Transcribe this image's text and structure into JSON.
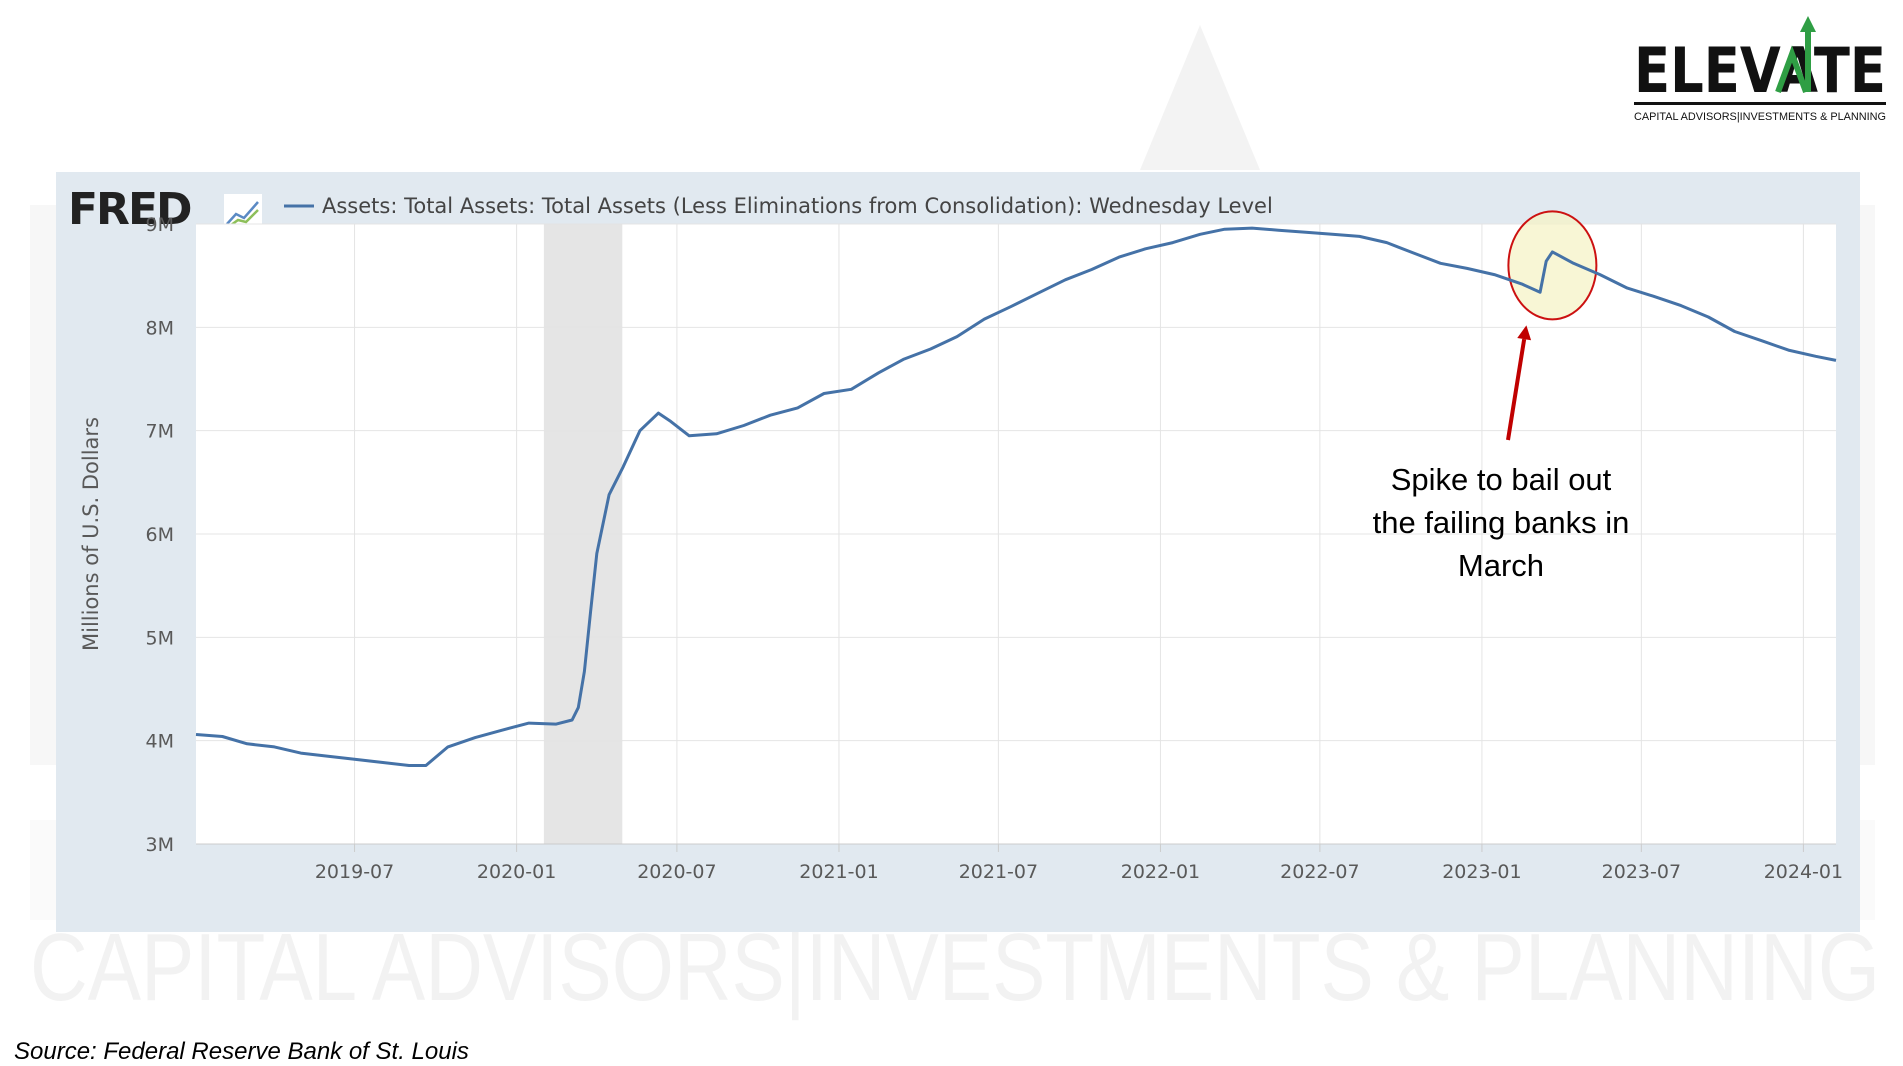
{
  "brand": {
    "name": "ELEVATE",
    "tagline": "CAPITAL ADVISORS|INVESTMENTS & PLANNING",
    "watermark_text": "CAPITAL ADVISORS|INVESTMENTS & PLANNING",
    "colors": {
      "text": "#111111",
      "accent": "#2f9e44"
    }
  },
  "fred": {
    "logo_text": "FRED",
    "logo_icon": "fred-chart-icon"
  },
  "source": "Source: Federal Reserve Bank of St. Louis",
  "chart_data": {
    "type": "line",
    "title": "",
    "xlabel": "",
    "ylabel": "Millions of U.S. Dollars",
    "ylim": [
      3000000,
      9000000
    ],
    "xlim": [
      "2019-01-02",
      "2024-02-07"
    ],
    "grid": true,
    "legend_position": "top-left",
    "yticks": [
      {
        "value": 3000000,
        "label": "3M"
      },
      {
        "value": 4000000,
        "label": "4M"
      },
      {
        "value": 5000000,
        "label": "5M"
      },
      {
        "value": 6000000,
        "label": "6M"
      },
      {
        "value": 7000000,
        "label": "7M"
      },
      {
        "value": 8000000,
        "label": "8M"
      },
      {
        "value": 9000000,
        "label": "9M"
      }
    ],
    "xticks": [
      {
        "value": "2019-07-01",
        "label": "2019-07"
      },
      {
        "value": "2020-01-01",
        "label": "2020-01"
      },
      {
        "value": "2020-07-01",
        "label": "2020-07"
      },
      {
        "value": "2021-01-01",
        "label": "2021-01"
      },
      {
        "value": "2021-07-01",
        "label": "2021-07"
      },
      {
        "value": "2022-01-01",
        "label": "2022-01"
      },
      {
        "value": "2022-07-01",
        "label": "2022-07"
      },
      {
        "value": "2023-01-01",
        "label": "2023-01"
      },
      {
        "value": "2023-07-01",
        "label": "2023-07"
      },
      {
        "value": "2024-01-01",
        "label": "2024-01"
      }
    ],
    "recession": {
      "start": "2020-02-01",
      "end": "2020-04-30",
      "color": "#e5e5e5"
    },
    "series": [
      {
        "name": "Assets: Total Assets: Total Assets (Less Eliminations from Consolidation): Wednesday Level",
        "color": "#4572a7",
        "points": [
          [
            "2019-01-02",
            4060000
          ],
          [
            "2019-02-01",
            4040000
          ],
          [
            "2019-03-01",
            3970000
          ],
          [
            "2019-04-01",
            3940000
          ],
          [
            "2019-05-01",
            3880000
          ],
          [
            "2019-06-01",
            3850000
          ],
          [
            "2019-07-01",
            3820000
          ],
          [
            "2019-08-01",
            3790000
          ],
          [
            "2019-09-01",
            3760000
          ],
          [
            "2019-09-20",
            3760000
          ],
          [
            "2019-10-15",
            3940000
          ],
          [
            "2019-11-15",
            4030000
          ],
          [
            "2019-12-15",
            4100000
          ],
          [
            "2020-01-15",
            4170000
          ],
          [
            "2020-02-15",
            4160000
          ],
          [
            "2020-03-04",
            4200000
          ],
          [
            "2020-03-11",
            4320000
          ],
          [
            "2020-03-18",
            4670000
          ],
          [
            "2020-03-25",
            5250000
          ],
          [
            "2020-04-01",
            5810000
          ],
          [
            "2020-04-15",
            6380000
          ],
          [
            "2020-05-01",
            6650000
          ],
          [
            "2020-05-20",
            7000000
          ],
          [
            "2020-06-10",
            7170000
          ],
          [
            "2020-06-24",
            7090000
          ],
          [
            "2020-07-15",
            6950000
          ],
          [
            "2020-08-15",
            6970000
          ],
          [
            "2020-09-15",
            7050000
          ],
          [
            "2020-10-15",
            7150000
          ],
          [
            "2020-11-15",
            7220000
          ],
          [
            "2020-12-15",
            7360000
          ],
          [
            "2021-01-15",
            7400000
          ],
          [
            "2021-02-15",
            7560000
          ],
          [
            "2021-03-15",
            7690000
          ],
          [
            "2021-04-15",
            7790000
          ],
          [
            "2021-05-15",
            7910000
          ],
          [
            "2021-06-15",
            8080000
          ],
          [
            "2021-07-15",
            8200000
          ],
          [
            "2021-08-15",
            8330000
          ],
          [
            "2021-09-15",
            8460000
          ],
          [
            "2021-10-15",
            8560000
          ],
          [
            "2021-11-15",
            8680000
          ],
          [
            "2021-12-15",
            8760000
          ],
          [
            "2022-01-15",
            8820000
          ],
          [
            "2022-02-15",
            8900000
          ],
          [
            "2022-03-15",
            8950000
          ],
          [
            "2022-04-15",
            8960000
          ],
          [
            "2022-05-15",
            8940000
          ],
          [
            "2022-06-15",
            8920000
          ],
          [
            "2022-07-15",
            8900000
          ],
          [
            "2022-08-15",
            8880000
          ],
          [
            "2022-09-15",
            8820000
          ],
          [
            "2022-10-15",
            8720000
          ],
          [
            "2022-11-15",
            8620000
          ],
          [
            "2022-12-15",
            8570000
          ],
          [
            "2023-01-15",
            8510000
          ],
          [
            "2023-02-15",
            8420000
          ],
          [
            "2023-03-08",
            8340000
          ],
          [
            "2023-03-15",
            8640000
          ],
          [
            "2023-03-22",
            8730000
          ],
          [
            "2023-04-15",
            8620000
          ],
          [
            "2023-05-15",
            8510000
          ],
          [
            "2023-06-15",
            8380000
          ],
          [
            "2023-07-15",
            8300000
          ],
          [
            "2023-08-15",
            8210000
          ],
          [
            "2023-09-15",
            8100000
          ],
          [
            "2023-10-15",
            7960000
          ],
          [
            "2023-11-15",
            7870000
          ],
          [
            "2023-12-15",
            7780000
          ],
          [
            "2024-01-15",
            7720000
          ],
          [
            "2024-02-07",
            7680000
          ]
        ]
      }
    ],
    "annotations": [
      {
        "text_lines": [
          "Spike to bail out",
          "the failing banks in",
          "March"
        ],
        "target": [
          "2023-03-22",
          8600000
        ],
        "circle_color": "#cc1111",
        "circle_fill": "#f6f3c7",
        "arrow_color": "#c00000"
      }
    ]
  }
}
